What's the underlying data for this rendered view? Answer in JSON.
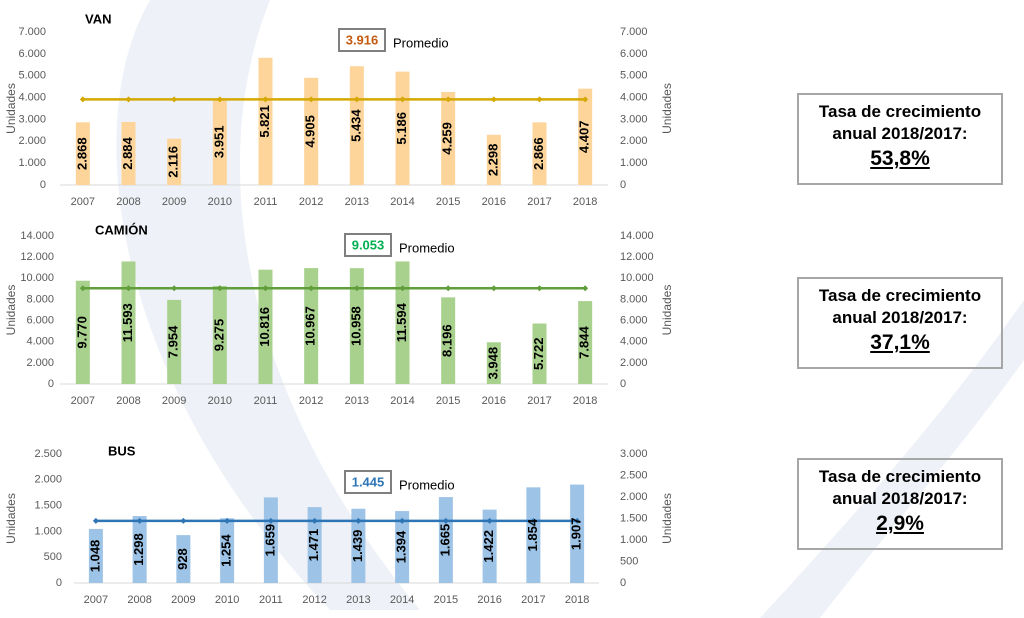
{
  "chart_data": [
    {
      "type": "bar",
      "title": "VAN",
      "categories": [
        "2007",
        "2008",
        "2009",
        "2010",
        "2011",
        "2012",
        "2013",
        "2014",
        "2015",
        "2016",
        "2017",
        "2018"
      ],
      "values": [
        2868,
        2884,
        2116,
        3951,
        5821,
        4905,
        5434,
        5186,
        4259,
        2298,
        2866,
        4407
      ],
      "value_labels": [
        "2.868",
        "2.884",
        "2.116",
        "3.951",
        "5.821",
        "4.905",
        "5.434",
        "5.186",
        "4.259",
        "2.298",
        "2.866",
        "4.407"
      ],
      "color": "#fdd59a",
      "ylim": [
        0,
        7000
      ],
      "yticks": [
        0,
        {
          "value": 1000,
          "label": "1.000"
        },
        {
          "value": 2000,
          "label": "2.000"
        },
        {
          "value": 3000,
          "label": "3.000"
        },
        {
          "value": 4000,
          "label": "4.000"
        },
        {
          "value": 5000,
          "label": "5.000"
        },
        {
          "value": 6000,
          "label": "6.000"
        },
        {
          "value": 7000,
          "label": "7.000"
        }
      ],
      "y2lim": [
        0,
        7000
      ],
      "y2ticks": [
        0,
        {
          "value": 1000,
          "label": "1.000"
        },
        {
          "value": 2000,
          "label": "2.000"
        },
        {
          "value": 3000,
          "label": "3.000"
        },
        {
          "value": 4000,
          "label": "4.000"
        },
        {
          "value": 5000,
          "label": "5.000"
        },
        {
          "value": 6000,
          "label": "6.000"
        },
        {
          "value": 7000,
          "label": "7.000"
        }
      ],
      "ylabel": "Unidades",
      "y2label": "Unidades",
      "average": 3916,
      "average_label": "3.916",
      "average_name": "Promedio",
      "average_axis": "y",
      "average_color": "#d4a800",
      "average_label_color": "#c55a11",
      "growth_title": "Tasa de crecimiento anual 2018/2017:",
      "growth_value": "53,8%"
    },
    {
      "type": "bar",
      "title": "CAMIÓN",
      "categories": [
        "2007",
        "2008",
        "2009",
        "2010",
        "2011",
        "2012",
        "2013",
        "2014",
        "2015",
        "2016",
        "2017",
        "2018"
      ],
      "values": [
        9770,
        11593,
        7954,
        9275,
        10816,
        10967,
        10958,
        11594,
        8196,
        3948,
        5722,
        7844
      ],
      "value_labels": [
        "9.770",
        "11.593",
        "7.954",
        "9.275",
        "10.816",
        "10.967",
        "10.958",
        "11.594",
        "8.196",
        "3.948",
        "5.722",
        "7.844"
      ],
      "color": "#a9d18e",
      "ylim": [
        0,
        14000
      ],
      "yticks": [
        0,
        {
          "value": 2000,
          "label": "2.000"
        },
        {
          "value": 4000,
          "label": "4.000"
        },
        {
          "value": 6000,
          "label": "6.000"
        },
        {
          "value": 8000,
          "label": "8.000"
        },
        {
          "value": 10000,
          "label": "10.000"
        },
        {
          "value": 12000,
          "label": "12.000"
        },
        {
          "value": 14000,
          "label": "14.000"
        }
      ],
      "y2lim": [
        0,
        14000
      ],
      "y2ticks": [
        0,
        {
          "value": 2000,
          "label": "2.000"
        },
        {
          "value": 4000,
          "label": "4.000"
        },
        {
          "value": 6000,
          "label": "6.000"
        },
        {
          "value": 8000,
          "label": "8.000"
        },
        {
          "value": 10000,
          "label": "10.000"
        },
        {
          "value": 12000,
          "label": "12.000"
        },
        {
          "value": 14000,
          "label": "14.000"
        }
      ],
      "ylabel": "Unidades",
      "y2label": "Unidades",
      "average": 9053,
      "average_label": "9.053",
      "average_name": "Promedio",
      "average_axis": "y",
      "average_color": "#5f9e3a",
      "average_label_color": "#00b050",
      "growth_title": "Tasa de crecimiento anual 2018/2017:",
      "growth_value": "37,1%"
    },
    {
      "type": "bar",
      "title": "BUS",
      "categories": [
        "2007",
        "2008",
        "2009",
        "2010",
        "2011",
        "2012",
        "2013",
        "2014",
        "2015",
        "2016",
        "2017",
        "2018"
      ],
      "values": [
        1048,
        1298,
        928,
        1254,
        1659,
        1471,
        1439,
        1394,
        1665,
        1422,
        1854,
        1907
      ],
      "value_labels": [
        "1.048",
        "1.298",
        "928",
        "1.254",
        "1.659",
        "1.471",
        "1.439",
        "1.394",
        "1.665",
        "1.422",
        "1.854",
        "1.907"
      ],
      "color": "#9dc3e6",
      "ylim": [
        0,
        2500
      ],
      "yticks": [
        0,
        500,
        {
          "value": 1000,
          "label": "1.000"
        },
        {
          "value": 1500,
          "label": "1.500"
        },
        {
          "value": 2000,
          "label": "2.000"
        },
        {
          "value": 2500,
          "label": "2.500"
        }
      ],
      "y2lim": [
        0,
        3000
      ],
      "y2ticks": [
        0,
        500,
        {
          "value": 1000,
          "label": "1.000"
        },
        {
          "value": 1500,
          "label": "1.500"
        },
        {
          "value": 2000,
          "label": "2.000"
        },
        {
          "value": 2500,
          "label": "2.500"
        },
        {
          "value": 3000,
          "label": "3.000"
        }
      ],
      "ylabel": "Unidades",
      "y2label": "Unidades",
      "average": 1445,
      "average_label": "1.445",
      "average_name": "Promedio",
      "average_axis": "y2",
      "average_color": "#2e75b6",
      "average_label_color": "#2e75b6",
      "growth_title": "Tasa de crecimiento anual 2018/2017:",
      "growth_value": "2,9%"
    }
  ]
}
